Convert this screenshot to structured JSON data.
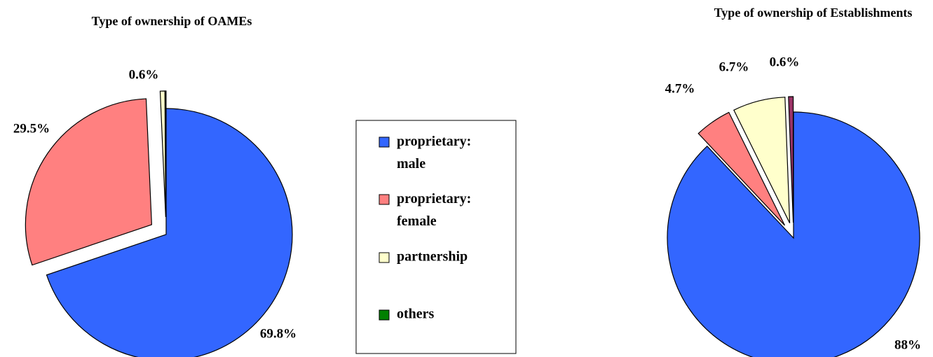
{
  "chart_data": [
    {
      "type": "pie",
      "title": "Type of ownership of OAMEs",
      "categories": [
        "proprietary: male",
        "proprietary: female",
        "partnership",
        "others"
      ],
      "values": [
        69.8,
        29.5,
        0.6,
        0.1
      ],
      "value_labels": [
        "69.8%",
        "29.5%",
        "0.6%",
        null
      ],
      "colors": [
        "#3366ff",
        "#ff8080",
        "#ffffcc",
        "#008000"
      ]
    },
    {
      "type": "pie",
      "title": "Type of ownership of Establishments",
      "categories": [
        "proprietary: male",
        "proprietary: female",
        "partnership",
        "others"
      ],
      "values": [
        88,
        4.7,
        6.7,
        0.6
      ],
      "value_labels": [
        "88%",
        "4.7%",
        "6.7%",
        "0.6%"
      ],
      "colors": [
        "#3366ff",
        "#ff8080",
        "#ffffcc",
        "#993366"
      ]
    }
  ]
}
